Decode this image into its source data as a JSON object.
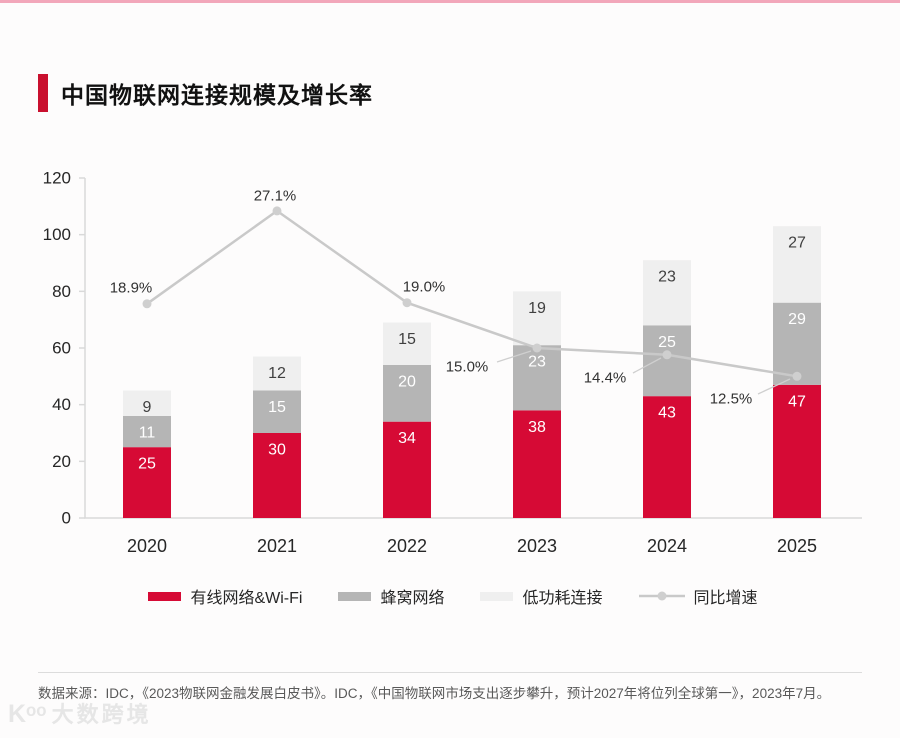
{
  "header": {
    "title": "中国物联网连接规模及增长率"
  },
  "chart_data": {
    "type": "bar",
    "subtype": "stacked-bars-with-growth-line",
    "title": "中国物联网连接规模及增长率",
    "categories": [
      "2020",
      "2021",
      "2022",
      "2023",
      "2024",
      "2025"
    ],
    "series": [
      {
        "name": "有线网络&Wi-Fi",
        "kind": "bar",
        "color": "#D60A35",
        "label_color": "#FFFFFF",
        "values": [
          25,
          30,
          34,
          38,
          43,
          47
        ]
      },
      {
        "name": "蜂窝网络",
        "kind": "bar",
        "color": "#B5B5B5",
        "label_color": "#FFFFFF",
        "values": [
          11,
          15,
          20,
          23,
          25,
          29
        ]
      },
      {
        "name": "低功耗连接",
        "kind": "bar",
        "color": "#EFEFEF",
        "label_color": "#404040",
        "values": [
          9,
          12,
          15,
          19,
          23,
          27
        ]
      },
      {
        "name": "同比增速",
        "kind": "line",
        "color": "#C9C9C9",
        "marker_color": "#CFCFCF",
        "values_pct": [
          18.9,
          27.1,
          19.0,
          15.0,
          14.4,
          12.5
        ],
        "point_labels": [
          "18.9%",
          "27.1%",
          "19.0%",
          "15.0%",
          "14.4%",
          "12.5%"
        ]
      }
    ],
    "ylim": [
      0,
      120
    ],
    "yticks": [
      0,
      20,
      40,
      60,
      80,
      100,
      120
    ],
    "grid": false,
    "legend_position": "bottom",
    "secondary_axis": {
      "visible": false,
      "pct_to_primary_units": 4
    }
  },
  "footer": {
    "source": "数据来源：IDC，《2023物联网金融发展白皮书》。IDC，《中国物联网市场支出逐步攀升，预计2027年将位列全球第一》，2023年7月。",
    "watermark_logo": "Kᵒᵒ",
    "watermark_text": "大数跨境"
  },
  "colors": {
    "accent_red": "#C9102E",
    "top_strip": "#F2A7BA",
    "axis": "#D9D9D9",
    "text_dark": "#262626",
    "text_muted": "#595959"
  }
}
